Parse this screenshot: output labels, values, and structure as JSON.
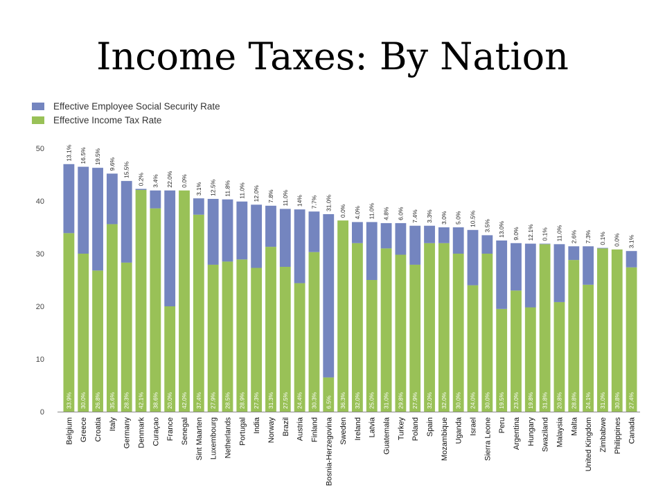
{
  "slide": {
    "title": "Income Taxes: By Nation"
  },
  "chart_data": {
    "type": "bar",
    "stacked": true,
    "title": "",
    "xlabel": "",
    "ylabel": "",
    "ylim": [
      0,
      50
    ],
    "yticks": [
      0,
      10,
      20,
      30,
      40,
      50
    ],
    "grid": false,
    "legend_position": "top-left",
    "categories": [
      "Belgium",
      "Greece",
      "Croatia",
      "Italy",
      "Germany",
      "Denmark",
      "Curaçao",
      "France",
      "Senegal",
      "Sint Maarten",
      "Luxembourg",
      "Netherlands",
      "Portugal",
      "India",
      "Norway",
      "Brazil",
      "Austria",
      "Finland",
      "Bosnia-Herzegovina",
      "Sweden",
      "Ireland",
      "Latvia",
      "Guatemala",
      "Turkey",
      "Poland",
      "Spain",
      "Mozambique",
      "Uganda",
      "Israel",
      "Sierra Leone",
      "Peru",
      "Argentina",
      "Hungary",
      "Swaziland",
      "Malaysia",
      "Malta",
      "United Kingdom",
      "Zimbabwe",
      "Philippines",
      "Canada"
    ],
    "series": [
      {
        "name": "Effective Income Tax Rate",
        "color": "#99c157",
        "values": [
          33.9,
          30.0,
          26.8,
          35.6,
          28.3,
          42.1,
          38.6,
          20.0,
          42.0,
          37.4,
          27.9,
          28.5,
          28.9,
          27.3,
          31.3,
          27.5,
          24.4,
          30.3,
          6.5,
          36.3,
          32.0,
          25.0,
          31.0,
          29.8,
          27.9,
          32.0,
          32.0,
          30.0,
          24.0,
          30.0,
          19.5,
          23.0,
          19.8,
          31.8,
          20.8,
          28.8,
          24.1,
          31.0,
          30.8,
          27.4
        ],
        "labels": [
          "33.9%",
          "30.0%",
          "26.8%",
          "35.6%",
          "28.3%",
          "42.1%",
          "38.6%",
          "20.0%",
          "42.0%",
          "37.4%",
          "27.9%",
          "28.5%",
          "28.9%",
          "27.3%",
          "31.3%",
          "27.5%",
          "24.4%",
          "30.3%",
          "6.5%",
          "36.3%",
          "32.0%",
          "25.0%",
          "31.0%",
          "29.8%",
          "27.9%",
          "32.0%",
          "32.0%",
          "30.0%",
          "24.0%",
          "30.0%",
          "19.5%",
          "23.0%",
          "19.8%",
          "31.8%",
          "20.8%",
          "28.8%",
          "24.1%",
          "31.0%",
          "30.8%",
          "27.4%"
        ]
      },
      {
        "name": "Effective Employee Social Security Rate",
        "color": "#7485bf",
        "values": [
          13.1,
          16.5,
          19.5,
          9.6,
          15.5,
          0.2,
          3.4,
          22.0,
          0.0,
          3.1,
          12.5,
          11.8,
          11.0,
          12.0,
          7.8,
          11.0,
          14.0,
          7.7,
          31.0,
          0.0,
          4.0,
          11.0,
          4.8,
          6.0,
          7.4,
          3.3,
          3.0,
          5.0,
          10.5,
          3.5,
          13.0,
          9.0,
          12.1,
          0.1,
          11.0,
          2.6,
          7.3,
          0.1,
          0.0,
          3.1
        ],
        "labels": [
          "13.1%",
          "16.5%",
          "19.5%",
          "9.6%",
          "15.5%",
          "0.2%",
          "3.4%",
          "22.0%",
          "0.0%",
          "3.1%",
          "12.5%",
          "11.8%",
          "11.0%",
          "12.0%",
          "7.8%",
          "11.0%",
          "14%",
          "7.7%",
          "31.0%",
          "0.0%",
          "4.0%",
          "11.0%",
          "4.8%",
          "6.0%",
          "7.4%",
          "3.3%",
          "3.0%",
          "5.0%",
          "10.5%",
          "3.5%",
          "13.0%",
          "9.0%",
          "12.1%",
          "0.1%",
          "11.0%",
          "2.6%",
          "7.3%",
          "0.1%",
          "0.0%",
          "3.1%"
        ]
      }
    ]
  }
}
